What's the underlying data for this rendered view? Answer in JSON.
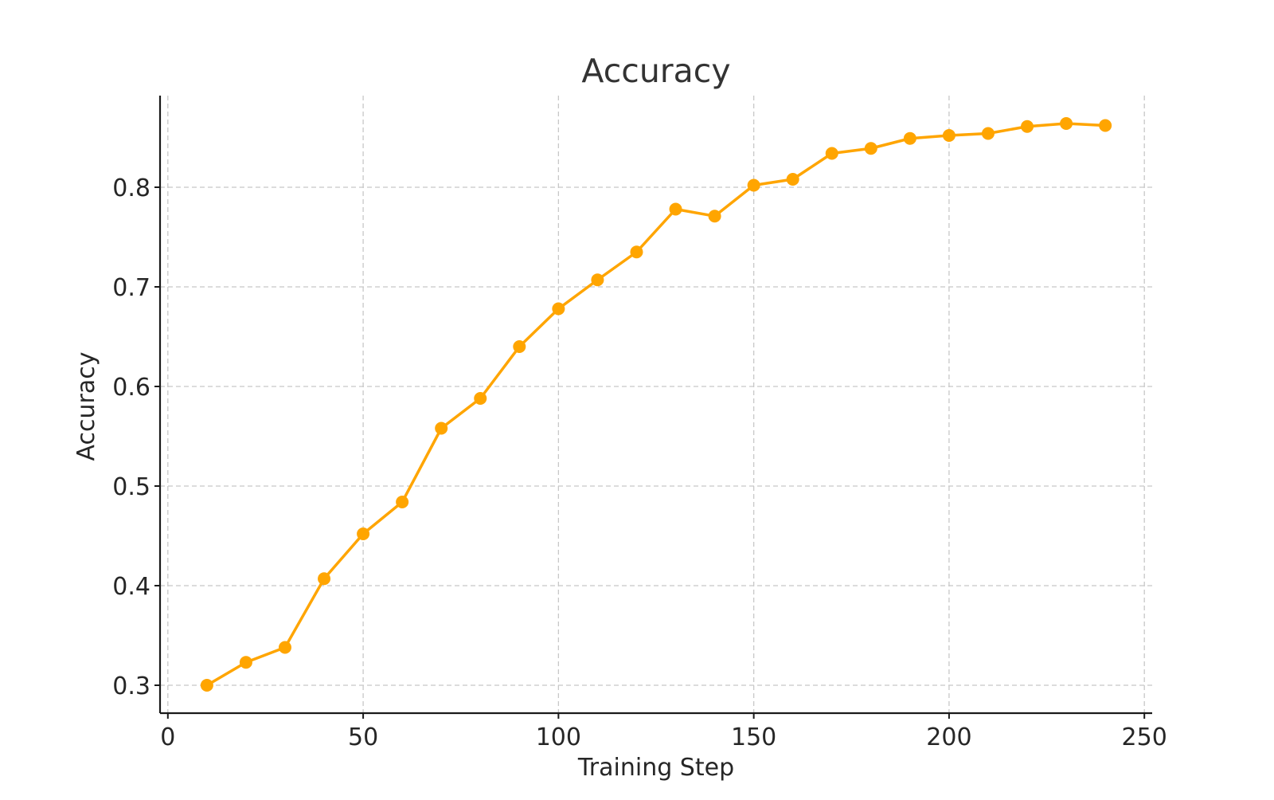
{
  "chart_data": {
    "type": "line",
    "title": "Accuracy",
    "xlabel": "Training Step",
    "ylabel": "Accuracy",
    "xlim": [
      -2,
      252
    ],
    "ylim": [
      0.272,
      0.892
    ],
    "xticks": [
      0,
      50,
      100,
      150,
      200,
      250
    ],
    "xtick_labels": [
      "0",
      "50",
      "100",
      "150",
      "200",
      "250"
    ],
    "yticks": [
      0.3,
      0.4,
      0.5,
      0.6,
      0.7,
      0.8
    ],
    "ytick_labels": [
      "0.3",
      "0.4",
      "0.5",
      "0.6",
      "0.7",
      "0.8"
    ],
    "grid": true,
    "series": [
      {
        "color": "#FFA500",
        "marker": "circle",
        "x": [
          10,
          20,
          30,
          40,
          50,
          60,
          70,
          80,
          90,
          100,
          110,
          120,
          130,
          140,
          150,
          160,
          170,
          180,
          190,
          200,
          210,
          220,
          230,
          240
        ],
        "y": [
          0.3,
          0.323,
          0.338,
          0.407,
          0.452,
          0.484,
          0.558,
          0.588,
          0.64,
          0.678,
          0.707,
          0.735,
          0.778,
          0.771,
          0.802,
          0.808,
          0.834,
          0.839,
          0.849,
          0.852,
          0.854,
          0.861,
          0.864,
          0.862
        ]
      }
    ]
  }
}
